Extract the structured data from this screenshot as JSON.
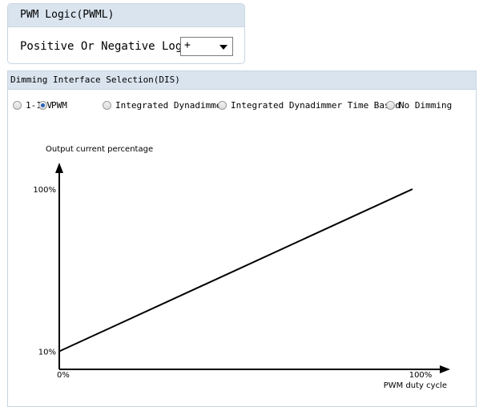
{
  "pwml": {
    "title": "PWM Logic(PWML)",
    "label": "Positive Or Negative Logic",
    "select_value": "+",
    "select_icon": "chevron-down-icon"
  },
  "dis": {
    "title": "Dimming Interface Selection(DIS)",
    "options": [
      {
        "label": "1-10V",
        "checked": false
      },
      {
        "label": "PWM",
        "checked": true
      },
      {
        "label": "Integrated Dynadimmer",
        "checked": false
      },
      {
        "label": "Integrated Dynadimmer Time Based",
        "checked": false
      },
      {
        "label": "No Dimming",
        "checked": false
      }
    ]
  },
  "chart_data": {
    "type": "line",
    "ylabel": "Output current percentage",
    "xlabel": "PWM duty cycle",
    "x_ticks": [
      "0%",
      "100%"
    ],
    "y_ticks": [
      "10%",
      "100%"
    ],
    "xlim": [
      0,
      100
    ],
    "ylim": [
      0,
      100
    ],
    "series": [
      {
        "x": [
          0,
          100
        ],
        "y": [
          10,
          100
        ]
      }
    ]
  }
}
